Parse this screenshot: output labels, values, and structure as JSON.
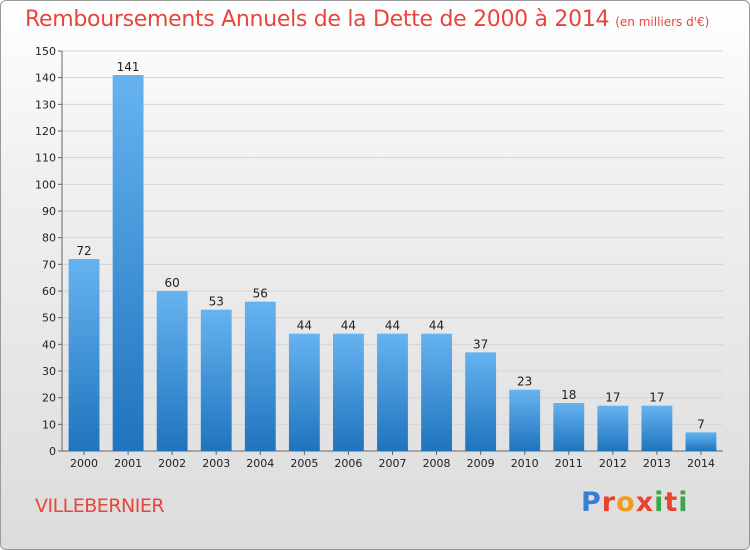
{
  "title": "Remboursements Annuels de la Dette de 2000 à 2014",
  "subtitle": "(en milliers d'€)",
  "commune": "VILLEBERNIER",
  "logo": {
    "text": "Proxiti",
    "colors": [
      "#3a7fd5",
      "#e8432c",
      "#f29b1b",
      "#3aa64a",
      "#e8432c"
    ]
  },
  "colors": {
    "accent": "#e8453c",
    "bar_top": "#66b3f0",
    "bar_bottom": "#1f74be"
  },
  "chart_data": {
    "type": "bar",
    "categories": [
      "2000",
      "2001",
      "2002",
      "2003",
      "2004",
      "2005",
      "2006",
      "2007",
      "2008",
      "2009",
      "2010",
      "2011",
      "2012",
      "2013",
      "2014"
    ],
    "values": [
      72,
      141,
      60,
      53,
      56,
      44,
      44,
      44,
      44,
      37,
      23,
      18,
      17,
      17,
      7
    ],
    "title": "Remboursements Annuels de la Dette de 2000 à 2014",
    "subtitle": "(en milliers d'€)",
    "xlabel": "",
    "ylabel": "",
    "ylim": [
      0,
      150
    ],
    "yticks": [
      0,
      10,
      20,
      30,
      40,
      50,
      60,
      70,
      80,
      90,
      100,
      110,
      120,
      130,
      140,
      150
    ],
    "grid": true,
    "legend": "none"
  }
}
